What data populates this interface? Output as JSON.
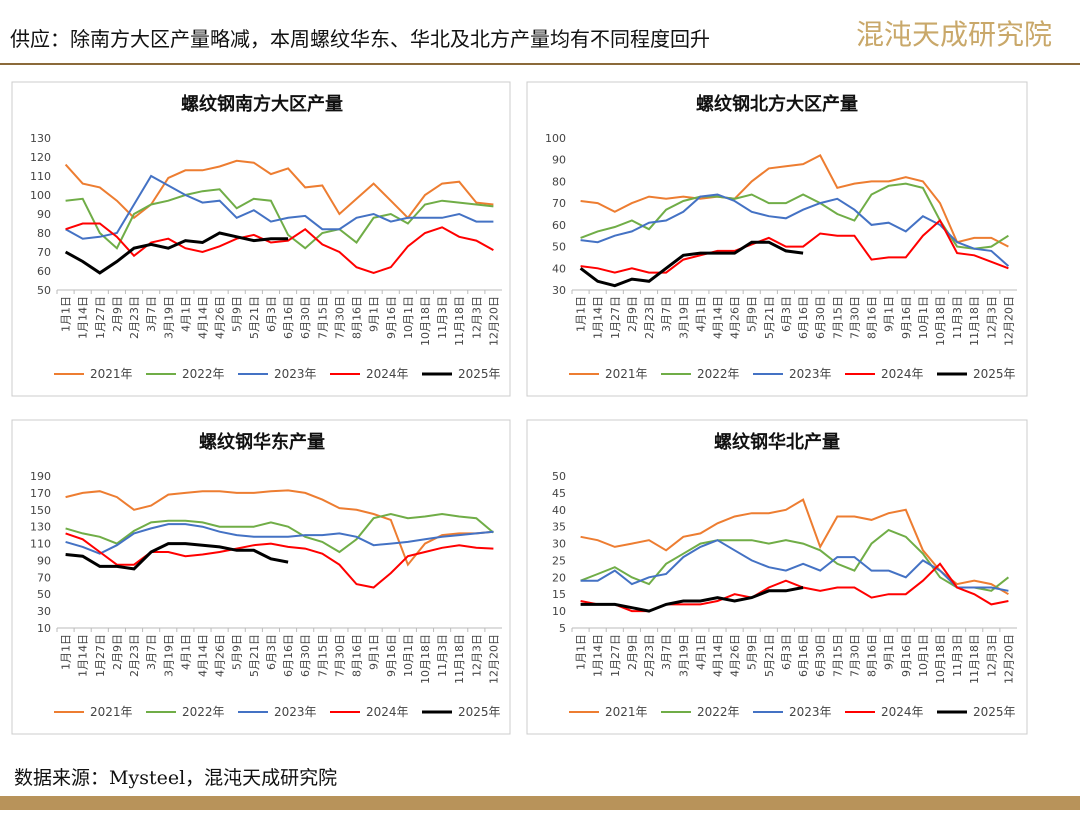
{
  "header": {
    "title": "供应：除南方大区产量略减，本周螺纹华东、华北及北方产量均有不同程度回升",
    "logo": "混沌天成研究院"
  },
  "footer": {
    "source": "数据来源：Mysteel，混沌天成研究院"
  },
  "chart_data": [
    {
      "type": "line",
      "title": "螺纹钢南方大区产量",
      "grid": false,
      "legend": "bottom",
      "categories": [
        "1月1日",
        "1月14日",
        "1月27日",
        "2月9日",
        "2月23日",
        "3月7日",
        "3月19日",
        "4月1日",
        "4月14日",
        "4月26日",
        "5月9日",
        "5月21日",
        "6月3日",
        "6月16日",
        "6月30日",
        "7月15日",
        "7月30日",
        "8月16日",
        "9月1日",
        "9月16日",
        "10月1日",
        "10月18日",
        "11月3日",
        "11月18日",
        "12月3日",
        "12月20日"
      ],
      "ylim": [
        50,
        130
      ],
      "yticks": [
        50,
        60,
        70,
        80,
        90,
        100,
        110,
        120,
        130
      ],
      "series": [
        {
          "name": "2021年",
          "color": "#ed7d31",
          "values": [
            116,
            106,
            104,
            97,
            88,
            95,
            109,
            113,
            113,
            115,
            118,
            117,
            111,
            114,
            104,
            105,
            90,
            98,
            106,
            97,
            88,
            100,
            106,
            107,
            96,
            95
          ]
        },
        {
          "name": "2022年",
          "color": "#70ad47",
          "values": [
            97,
            98,
            80,
            72,
            90,
            95,
            97,
            100,
            102,
            103,
            93,
            98,
            97,
            79,
            72,
            80,
            82,
            75,
            88,
            90,
            85,
            95,
            97,
            96,
            95,
            94
          ]
        },
        {
          "name": "2023年",
          "color": "#4472c4",
          "values": [
            82,
            77,
            78,
            80,
            95,
            110,
            105,
            100,
            96,
            97,
            88,
            92,
            86,
            88,
            89,
            82,
            82,
            88,
            90,
            86,
            88,
            88,
            88,
            90,
            86,
            86
          ]
        },
        {
          "name": "2024年",
          "color": "#ff0000",
          "values": [
            82,
            85,
            85,
            78,
            68,
            75,
            77,
            72,
            70,
            73,
            77,
            79,
            75,
            76,
            82,
            74,
            70,
            62,
            59,
            62,
            73,
            80,
            83,
            78,
            76,
            71
          ]
        },
        {
          "name": "2025年",
          "color": "#000000",
          "values": [
            70,
            65,
            59,
            65,
            72,
            74,
            72,
            76,
            75,
            80,
            78,
            76,
            77,
            77,
            null,
            null,
            null,
            null,
            null,
            null,
            null,
            null,
            null,
            null,
            null,
            null
          ]
        }
      ]
    },
    {
      "type": "line",
      "title": "螺纹钢北方大区产量",
      "grid": false,
      "legend": "bottom",
      "categories": [
        "1月1日",
        "1月14日",
        "1月27日",
        "2月9日",
        "2月23日",
        "3月7日",
        "3月19日",
        "4月1日",
        "4月14日",
        "4月26日",
        "5月9日",
        "5月21日",
        "6月3日",
        "6月16日",
        "6月30日",
        "7月15日",
        "7月30日",
        "8月16日",
        "9月1日",
        "9月16日",
        "10月1日",
        "10月18日",
        "11月3日",
        "11月18日",
        "12月3日",
        "12月20日"
      ],
      "ylim": [
        30,
        100
      ],
      "yticks": [
        30,
        40,
        50,
        60,
        70,
        80,
        90,
        100
      ],
      "series": [
        {
          "name": "2021年",
          "color": "#ed7d31",
          "values": [
            71,
            70,
            66,
            70,
            73,
            72,
            73,
            72,
            73,
            72,
            80,
            86,
            87,
            88,
            92,
            77,
            79,
            80,
            80,
            82,
            80,
            70,
            52,
            54,
            54,
            50
          ]
        },
        {
          "name": "2022年",
          "color": "#70ad47",
          "values": [
            54,
            57,
            59,
            62,
            58,
            67,
            71,
            73,
            73,
            72,
            74,
            70,
            70,
            74,
            70,
            65,
            62,
            74,
            78,
            79,
            77,
            62,
            50,
            49,
            50,
            55
          ]
        },
        {
          "name": "2023年",
          "color": "#4472c4",
          "values": [
            53,
            52,
            55,
            57,
            61,
            62,
            66,
            73,
            74,
            71,
            66,
            64,
            63,
            67,
            70,
            72,
            67,
            60,
            61,
            57,
            64,
            60,
            52,
            49,
            48,
            41
          ]
        },
        {
          "name": "2024年",
          "color": "#ff0000",
          "values": [
            41,
            40,
            38,
            40,
            38,
            38,
            44,
            46,
            48,
            48,
            51,
            54,
            50,
            50,
            56,
            55,
            55,
            44,
            45,
            45,
            55,
            62,
            47,
            46,
            43,
            40
          ]
        },
        {
          "name": "2025年",
          "color": "#000000",
          "values": [
            40,
            34,
            32,
            35,
            34,
            40,
            46,
            47,
            47,
            47,
            52,
            52,
            48,
            47,
            null,
            null,
            null,
            null,
            null,
            null,
            null,
            null,
            null,
            null,
            null,
            null
          ]
        }
      ]
    },
    {
      "type": "line",
      "title": "螺纹钢华东产量",
      "grid": false,
      "legend": "bottom",
      "categories": [
        "1月1日",
        "1月14日",
        "1月27日",
        "2月9日",
        "2月23日",
        "3月7日",
        "3月19日",
        "4月1日",
        "4月14日",
        "4月26日",
        "5月9日",
        "5月21日",
        "6月3日",
        "6月16日",
        "6月30日",
        "7月15日",
        "7月30日",
        "8月16日",
        "9月1日",
        "9月16日",
        "10月1日",
        "10月18日",
        "11月3日",
        "11月18日",
        "12月3日",
        "12月20日"
      ],
      "ylim": [
        10,
        190
      ],
      "yticks": [
        10,
        30,
        50,
        70,
        90,
        110,
        130,
        150,
        170,
        190
      ],
      "series": [
        {
          "name": "2021年",
          "color": "#ed7d31",
          "values": [
            165,
            170,
            172,
            165,
            150,
            155,
            168,
            170,
            172,
            172,
            170,
            170,
            172,
            173,
            170,
            162,
            152,
            150,
            145,
            138,
            85,
            110,
            120,
            122,
            122,
            124
          ]
        },
        {
          "name": "2022年",
          "color": "#70ad47",
          "values": [
            128,
            122,
            118,
            110,
            125,
            135,
            137,
            137,
            135,
            130,
            130,
            130,
            135,
            130,
            118,
            112,
            100,
            115,
            140,
            145,
            140,
            142,
            145,
            142,
            140,
            123
          ]
        },
        {
          "name": "2023年",
          "color": "#4472c4",
          "values": [
            112,
            106,
            98,
            108,
            122,
            128,
            133,
            133,
            130,
            124,
            120,
            118,
            118,
            118,
            120,
            120,
            122,
            118,
            108,
            110,
            112,
            115,
            118,
            120,
            122,
            124
          ]
        },
        {
          "name": "2024年",
          "color": "#ff0000",
          "values": [
            122,
            115,
            100,
            85,
            85,
            100,
            100,
            95,
            97,
            100,
            104,
            108,
            110,
            106,
            104,
            98,
            85,
            62,
            58,
            75,
            95,
            100,
            105,
            108,
            105,
            104
          ]
        },
        {
          "name": "2025年",
          "color": "#000000",
          "values": [
            97,
            95,
            83,
            83,
            80,
            100,
            110,
            110,
            108,
            106,
            102,
            102,
            92,
            88,
            null,
            null,
            null,
            null,
            null,
            null,
            null,
            null,
            null,
            null,
            null,
            null
          ]
        }
      ]
    },
    {
      "type": "line",
      "title": "螺纹钢华北产量",
      "grid": false,
      "legend": "bottom",
      "categories": [
        "1月1日",
        "1月14日",
        "1月27日",
        "2月9日",
        "2月23日",
        "3月7日",
        "3月19日",
        "4月1日",
        "4月14日",
        "4月26日",
        "5月9日",
        "5月21日",
        "6月3日",
        "6月16日",
        "6月30日",
        "7月15日",
        "7月30日",
        "8月16日",
        "9月1日",
        "9月16日",
        "10月1日",
        "10月18日",
        "11月3日",
        "11月18日",
        "12月3日",
        "12月20日"
      ],
      "ylim": [
        5,
        50
      ],
      "yticks": [
        5,
        10,
        15,
        20,
        25,
        30,
        35,
        40,
        45,
        50
      ],
      "series": [
        {
          "name": "2021年",
          "color": "#ed7d31",
          "values": [
            32,
            31,
            29,
            30,
            31,
            28,
            32,
            33,
            36,
            38,
            39,
            39,
            40,
            43,
            29,
            38,
            38,
            37,
            39,
            40,
            28,
            22,
            18,
            19,
            18,
            15
          ]
        },
        {
          "name": "2022年",
          "color": "#70ad47",
          "values": [
            19,
            21,
            23,
            20,
            18,
            24,
            27,
            30,
            31,
            31,
            31,
            30,
            31,
            30,
            28,
            24,
            22,
            30,
            34,
            32,
            27,
            20,
            17,
            17,
            16,
            20
          ]
        },
        {
          "name": "2023年",
          "color": "#4472c4",
          "values": [
            19,
            19,
            22,
            18,
            20,
            21,
            26,
            29,
            31,
            28,
            25,
            23,
            22,
            24,
            22,
            26,
            26,
            22,
            22,
            20,
            25,
            22,
            17,
            17,
            17,
            16
          ]
        },
        {
          "name": "2024年",
          "color": "#ff0000",
          "values": [
            13,
            12,
            12,
            10,
            10,
            12,
            12,
            12,
            13,
            15,
            14,
            17,
            19,
            17,
            16,
            17,
            17,
            14,
            15,
            15,
            19,
            24,
            17,
            15,
            12,
            13
          ]
        },
        {
          "name": "2025年",
          "color": "#000000",
          "values": [
            12,
            12,
            12,
            11,
            10,
            12,
            13,
            13,
            14,
            13,
            14,
            16,
            16,
            17,
            null,
            null,
            null,
            null,
            null,
            null,
            null,
            null,
            null,
            null,
            null,
            null
          ]
        }
      ]
    }
  ]
}
